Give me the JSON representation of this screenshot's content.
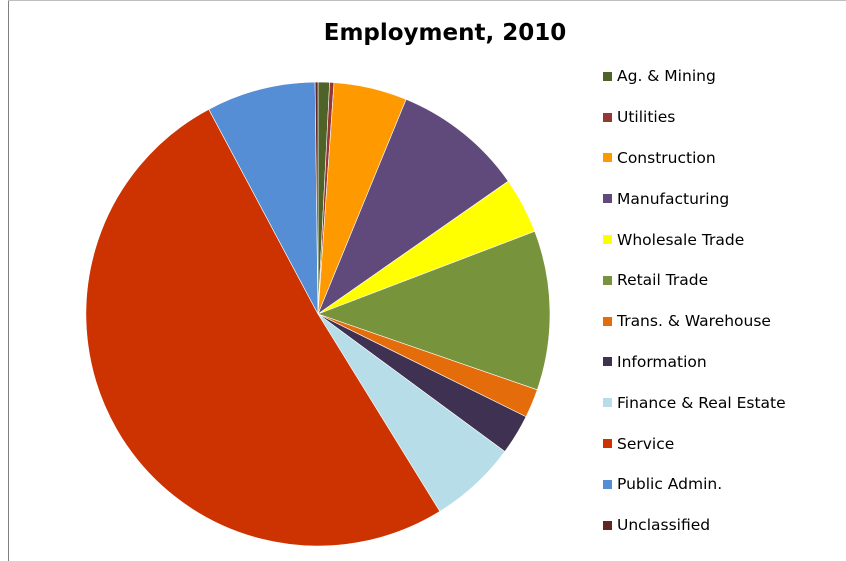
{
  "chart_data": {
    "type": "pie",
    "title": "Employment, 2010",
    "legend_position": "right",
    "series": [
      {
        "name": "Ag. & Mining",
        "value": 0.8,
        "color": "#4f6228"
      },
      {
        "name": "Utilities",
        "value": 0.3,
        "color": "#953735"
      },
      {
        "name": "Construction",
        "value": 5.1,
        "color": "#ff9900"
      },
      {
        "name": "Manufacturing",
        "value": 9.1,
        "color": "#604a7b"
      },
      {
        "name": "Wholesale Trade",
        "value": 3.9,
        "color": "#ffff00"
      },
      {
        "name": "Retail Trade",
        "value": 11.1,
        "color": "#77933c"
      },
      {
        "name": "Trans. & Warehouse",
        "value": 2.0,
        "color": "#e46c0a"
      },
      {
        "name": "Information",
        "value": 2.8,
        "color": "#3f3151"
      },
      {
        "name": "Finance & Real Estate",
        "value": 6.1,
        "color": "#b7dde8"
      },
      {
        "name": "Service",
        "value": 51.0,
        "color": "#cc3300"
      },
      {
        "name": "Public Admin.",
        "value": 7.6,
        "color": "#558ed5"
      },
      {
        "name": "Unclassified",
        "value": 0.2,
        "color": "#632523"
      }
    ]
  }
}
